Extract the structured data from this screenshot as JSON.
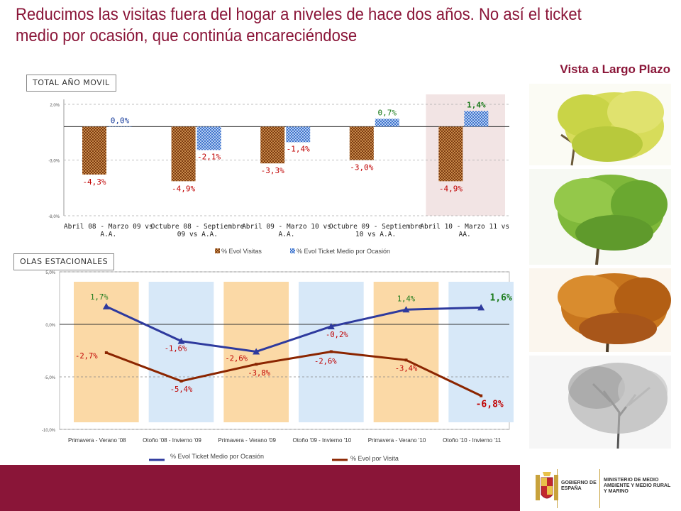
{
  "header": {
    "title": "Reducimos las visitas fuera del hogar a niveles de hace dos años. No así el ticket medio por ocasión, que continúa encareciéndose",
    "subtitle": "Vista a Largo Plazo"
  },
  "chart_data": [
    {
      "type": "bar",
      "label": "TOTAL AÑO MOVIL",
      "categories": [
        "Abril 08 - Marzo 09 vs A.A.",
        "Octubre 08 - Septiembre 09 vs A.A.",
        "Abril 09 - Marzo 10 vs A.A.",
        "Octubre 09 - Septiembre 10 vs A.A.",
        "Abril 10 - Marzo 11 vs AA."
      ],
      "category_lines": [
        [
          "Abril 08 - Marzo 09 vs",
          "A.A."
        ],
        [
          "Octubre 08 - Septiembre",
          "09 vs A.A."
        ],
        [
          "Abril 09 - Marzo 10 vs",
          "A.A."
        ],
        [
          "Octubre 09 - Septiembre",
          "10 vs A.A."
        ],
        [
          "Abril 10 - Marzo 11 vs",
          "AA."
        ]
      ],
      "series": [
        {
          "name": "% Evol Visitas",
          "values": [
            -4.3,
            -4.9,
            -3.3,
            -3.0,
            -4.9
          ],
          "labels": [
            "-4,3%",
            "-4,9%",
            "-3,3%",
            "-3,0%",
            "-4,9%"
          ],
          "color": "#8b4513"
        },
        {
          "name": "% Evol Ticket Medio por Ocasión",
          "values": [
            0.0,
            -2.1,
            -1.4,
            0.7,
            1.4
          ],
          "labels": [
            "0,0%",
            "-2,1%",
            "-1,4%",
            "0,7%",
            "1,4%"
          ],
          "color": "#4a7fd4"
        }
      ],
      "yticks": [
        2.0,
        -3.0,
        -8.0
      ],
      "ytick_labels": [
        "2,0%",
        "-3,0%",
        "-8,0%"
      ],
      "ylim": [
        -8.0,
        2.0
      ],
      "highlight_category": 4,
      "legend": [
        "% Evol Visitas",
        "% Evol Ticket Medio por Ocasión"
      ]
    },
    {
      "type": "line",
      "label": "OLAS ESTACIONALES",
      "categories": [
        "Primavera - Verano '08",
        "Otoño '08 - Invierno '09",
        "Primavera - Verano '09",
        "Otoño '09 - Invierno '10",
        "Primavera - Verano '10",
        "Otoño '10 - Invierno '11"
      ],
      "series": [
        {
          "name": "% Evol Ticket Medio por Ocasión",
          "values": [
            1.7,
            -1.6,
            -2.6,
            -0.2,
            1.4,
            1.6
          ],
          "labels": [
            "1,7%",
            "-1,6%",
            "-2,6%",
            "-0,2%",
            "1,4%",
            "1,6%"
          ],
          "color": "#2e3a9e"
        },
        {
          "name": "% Evol por Visita",
          "values": [
            -2.7,
            -5.4,
            -3.8,
            -2.6,
            -3.4,
            -6.8
          ],
          "labels": [
            "-2,7%",
            "-5,4%",
            "-3,8%",
            "-2,6%",
            "-3,4%",
            "-6,8%"
          ],
          "color": "#8b2500"
        }
      ],
      "yticks": [
        5.0,
        0.0,
        -5.0,
        -10.0
      ],
      "ytick_labels": [
        "5,0%",
        "0,0%",
        "-5,0%",
        "-10,0%"
      ],
      "ylim": [
        -10.0,
        5.0
      ],
      "band_colors": [
        "#fbd9a6",
        "#d7e8f8"
      ],
      "legend": [
        "% Evol Ticket Medio por Ocasión",
        "% Evol por Visita"
      ]
    }
  ],
  "footer": {
    "gov_label": "GOBIERNO DE ESPAÑA",
    "ministry_label": "MINISTERIO DE MEDIO AMBIENTE Y MEDIO RURAL Y MARINO"
  }
}
